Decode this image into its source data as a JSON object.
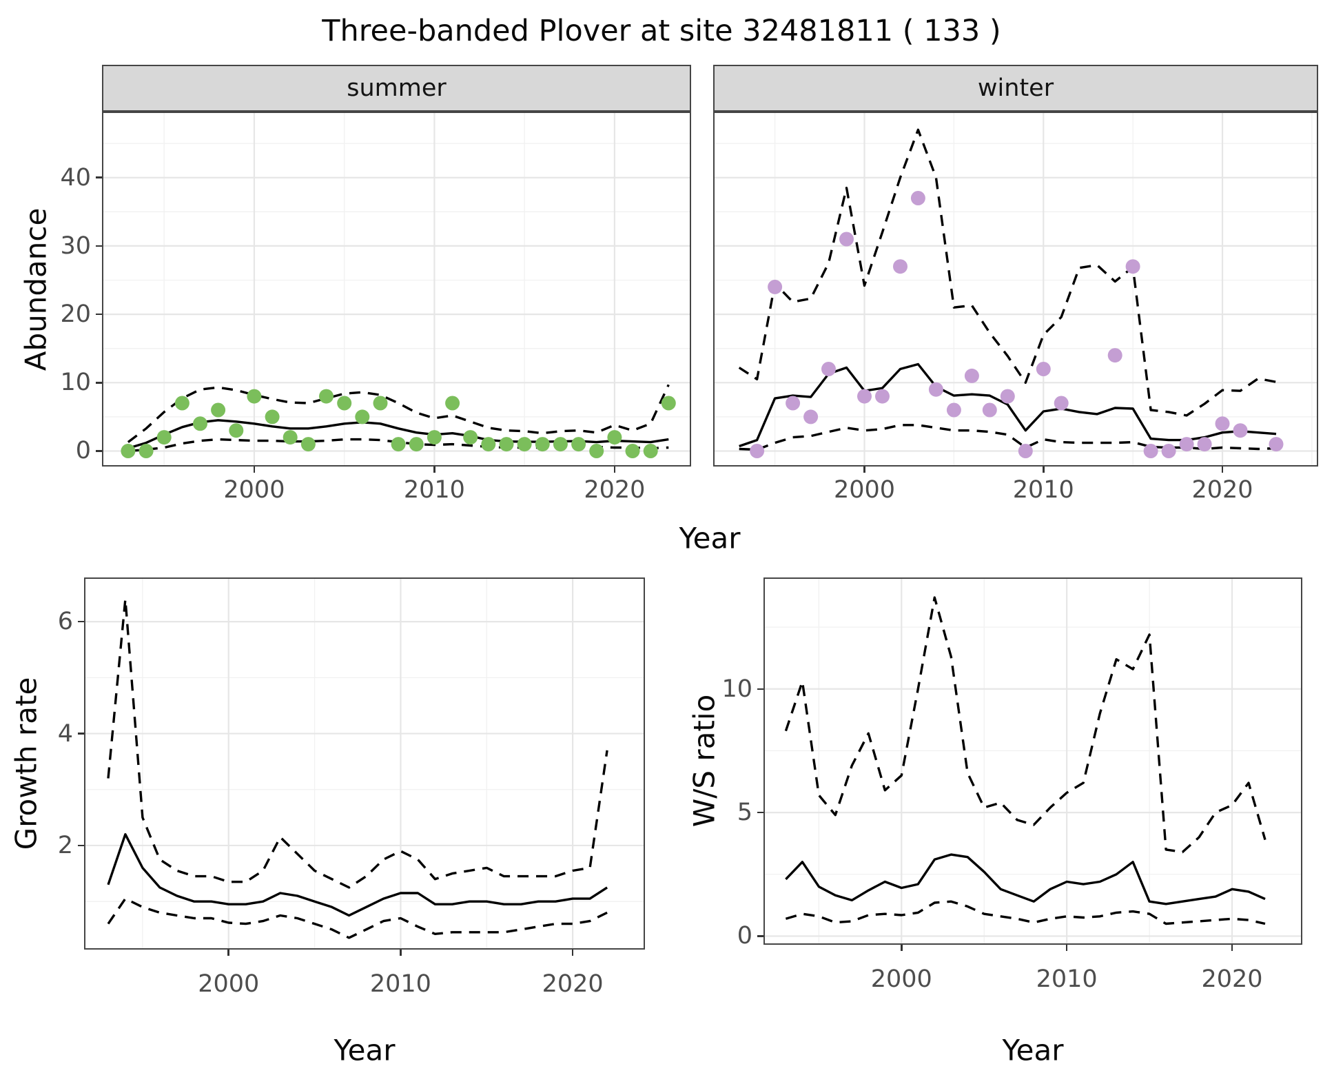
{
  "labels": {
    "title": "Three-banded Plover at site 32481811 ( 133 )",
    "facet_summer": "summer",
    "facet_winter": "winter",
    "y_axis_top": "Abundance",
    "y_axis_growth": "Growth rate",
    "y_axis_ws": "W/S ratio",
    "x_axis": "Year"
  },
  "colors": {
    "summer_points": "#7bbe5b",
    "winter_points": "#c49ed3",
    "line": "#000000",
    "strip_background": "#d8d8d8",
    "panel_border": "#454545",
    "grid_major": "#e6e6e6",
    "grid_minor": "#f1f1f1",
    "tick_text": "#4d4d4d"
  },
  "chart_data": [
    {
      "id": "summer-abundance",
      "type": "scatter",
      "facet": "summer",
      "ylabel": "Abundance",
      "xlabel": "Year",
      "xlim": [
        1991.55,
        2024.25
      ],
      "ylim": [
        -2.27,
        49.65
      ],
      "x_ticks": {
        "major": [
          2000,
          2010,
          2020
        ],
        "labels": [
          "2000",
          "2010",
          "2020"
        ],
        "minor": [
          1995,
          2005,
          2015
        ]
      },
      "y_ticks": {
        "major": [
          0,
          10,
          20,
          30,
          40
        ],
        "labels": [
          "0",
          "10",
          "20",
          "30",
          "40"
        ],
        "minor": [
          5,
          15,
          25,
          35,
          45
        ]
      },
      "show_y_axis": true,
      "x_label_offset": 14,
      "point_color": "#7bbe5b",
      "fit_start": 1993,
      "obs": [
        [
          1993,
          0
        ],
        [
          1994,
          0
        ],
        [
          1995,
          2
        ],
        [
          1996,
          7
        ],
        [
          1997,
          4
        ],
        [
          1998,
          6
        ],
        [
          1999,
          3
        ],
        [
          2000,
          8
        ],
        [
          2001,
          5
        ],
        [
          2002,
          2
        ],
        [
          2003,
          1
        ],
        [
          2004,
          8
        ],
        [
          2005,
          7
        ],
        [
          2006,
          5
        ],
        [
          2007,
          7
        ],
        [
          2008,
          1
        ],
        [
          2009,
          1
        ],
        [
          2010,
          2
        ],
        [
          2011,
          7
        ],
        [
          2012,
          2
        ],
        [
          2013,
          1
        ],
        [
          2014,
          1
        ],
        [
          2015,
          1
        ],
        [
          2016,
          1
        ],
        [
          2017,
          1
        ],
        [
          2018,
          1
        ],
        [
          2019,
          0
        ],
        [
          2020,
          2
        ],
        [
          2021,
          0
        ],
        [
          2022,
          0
        ],
        [
          2023,
          7
        ]
      ],
      "fit": [
        0.4,
        1.2,
        2.4,
        3.5,
        4.2,
        4.5,
        4.3,
        4.0,
        3.6,
        3.3,
        3.3,
        3.6,
        4.0,
        4.2,
        4.0,
        3.3,
        2.7,
        2.4,
        2.6,
        2.2,
        1.6,
        1.4,
        1.35,
        1.35,
        1.4,
        1.45,
        1.3,
        1.5,
        1.4,
        1.3,
        1.7
      ],
      "upper": [
        1.3,
        3.3,
        5.7,
        7.7,
        9.0,
        9.3,
        8.9,
        8.2,
        7.6,
        7.1,
        7.0,
        7.7,
        8.4,
        8.6,
        8.2,
        7.0,
        5.6,
        4.8,
        5.2,
        4.3,
        3.4,
        3.0,
        2.9,
        2.6,
        2.9,
        3.0,
        2.7,
        3.8,
        3.0,
        4.0,
        9.7
      ],
      "lower": [
        0.0,
        0.2,
        0.5,
        1.1,
        1.5,
        1.7,
        1.6,
        1.5,
        1.5,
        1.4,
        1.4,
        1.5,
        1.7,
        1.7,
        1.6,
        1.3,
        1.0,
        0.9,
        1.0,
        0.8,
        0.6,
        0.5,
        0.5,
        0.5,
        0.6,
        0.6,
        0.6,
        0.5,
        0.5,
        0.4,
        0.5
      ]
    },
    {
      "id": "winter-abundance",
      "type": "scatter",
      "facet": "winter",
      "ylabel": "Abundance",
      "xlabel": "Year",
      "xlim": [
        1991.55,
        2025.35
      ],
      "ylim": [
        -2.27,
        49.65
      ],
      "x_ticks": {
        "major": [
          2000,
          2010,
          2020
        ],
        "labels": [
          "2000",
          "2010",
          "2020"
        ],
        "minor": [
          1995,
          2005,
          2015,
          2025
        ]
      },
      "y_ticks": {
        "major": [
          0,
          10,
          20,
          30,
          40
        ],
        "labels": [
          "0",
          "10",
          "20",
          "30",
          "40"
        ],
        "minor": [
          5,
          15,
          25,
          35,
          45
        ]
      },
      "show_y_axis": false,
      "x_label_offset": 14,
      "point_color": "#c49ed3",
      "fit_start": 1993,
      "obs": [
        [
          1994,
          0
        ],
        [
          1995,
          24
        ],
        [
          1996,
          7
        ],
        [
          1997,
          5
        ],
        [
          1998,
          12
        ],
        [
          1999,
          31
        ],
        [
          2000,
          8
        ],
        [
          2001,
          8
        ],
        [
          2002,
          27
        ],
        [
          2003,
          37
        ],
        [
          2004,
          9
        ],
        [
          2005,
          6
        ],
        [
          2006,
          11
        ],
        [
          2007,
          6
        ],
        [
          2008,
          8
        ],
        [
          2009,
          0
        ],
        [
          2010,
          12
        ],
        [
          2011,
          7
        ],
        [
          2014,
          14
        ],
        [
          2015,
          27
        ],
        [
          2016,
          0
        ],
        [
          2017,
          0
        ],
        [
          2018,
          1
        ],
        [
          2019,
          1
        ],
        [
          2020,
          4
        ],
        [
          2021,
          3
        ],
        [
          2023,
          1
        ]
      ],
      "fit": [
        0.7,
        1.6,
        7.7,
        8.1,
        7.9,
        11.3,
        12.2,
        8.8,
        9.2,
        12.0,
        12.7,
        9.4,
        8.1,
        8.3,
        8.1,
        6.8,
        3.0,
        5.8,
        6.2,
        5.7,
        5.4,
        6.3,
        6.2,
        1.8,
        1.6,
        1.6,
        2.0,
        2.7,
        2.9,
        2.7,
        2.5
      ],
      "upper": [
        12.2,
        10.5,
        24.5,
        21.8,
        22.3,
        27.5,
        38.5,
        24.2,
        32.0,
        40.0,
        47.0,
        40.0,
        21.0,
        21.3,
        17.3,
        13.9,
        10.0,
        17.0,
        19.6,
        26.8,
        27.2,
        24.8,
        26.9,
        6.0,
        5.7,
        5.2,
        6.9,
        8.9,
        8.8,
        10.6,
        10.1
      ],
      "lower": [
        0.3,
        0.2,
        1.2,
        2.0,
        2.2,
        2.8,
        3.4,
        3.0,
        3.2,
        3.8,
        3.8,
        3.4,
        3.0,
        3.0,
        2.8,
        2.4,
        0.5,
        1.7,
        1.3,
        1.2,
        1.2,
        1.2,
        1.3,
        0.6,
        0.5,
        0.5,
        0.3,
        0.5,
        0.4,
        0.3,
        0.4
      ]
    },
    {
      "id": "growth-rate",
      "type": "line",
      "ylabel": "Growth rate",
      "xlabel": "Year",
      "xlim": [
        1991.6,
        2024.2
      ],
      "ylim": [
        0.14,
        6.79
      ],
      "x_ticks": {
        "major": [
          2000,
          2010,
          2020
        ],
        "labels": [
          "2000",
          "2010",
          "2020"
        ],
        "minor": [
          1995,
          2005,
          2015
        ]
      },
      "y_ticks": {
        "major": [
          2,
          4,
          6
        ],
        "labels": [
          "2",
          "4",
          "6"
        ],
        "minor": [
          1,
          3,
          5
        ]
      },
      "show_y_axis": true,
      "x_label_offset": 30,
      "point_color": null,
      "fit_start": 1993,
      "obs": null,
      "fit": [
        1.3,
        2.2,
        1.6,
        1.25,
        1.1,
        1.0,
        1.0,
        0.95,
        0.95,
        1.0,
        1.15,
        1.1,
        1.0,
        0.9,
        0.75,
        0.9,
        1.05,
        1.15,
        1.15,
        0.95,
        0.95,
        1.0,
        1.0,
        0.95,
        0.95,
        1.0,
        1.0,
        1.05,
        1.05,
        1.25
      ],
      "upper": [
        3.2,
        6.4,
        2.5,
        1.75,
        1.55,
        1.45,
        1.45,
        1.35,
        1.35,
        1.55,
        2.15,
        1.85,
        1.55,
        1.4,
        1.25,
        1.45,
        1.75,
        1.9,
        1.75,
        1.4,
        1.5,
        1.55,
        1.6,
        1.45,
        1.45,
        1.45,
        1.45,
        1.55,
        1.6,
        3.7
      ],
      "lower": [
        0.6,
        1.05,
        0.9,
        0.8,
        0.75,
        0.7,
        0.7,
        0.62,
        0.6,
        0.65,
        0.75,
        0.7,
        0.6,
        0.5,
        0.35,
        0.5,
        0.65,
        0.7,
        0.55,
        0.42,
        0.45,
        0.45,
        0.45,
        0.45,
        0.5,
        0.55,
        0.6,
        0.6,
        0.65,
        0.8
      ]
    },
    {
      "id": "ws-ratio",
      "type": "line",
      "ylabel": "W/S ratio",
      "xlabel": "Year",
      "xlim": [
        1991.65,
        2024.25
      ],
      "ylim": [
        -0.35,
        14.51
      ],
      "x_ticks": {
        "major": [
          2000,
          2010,
          2020
        ],
        "labels": [
          "2000",
          "2010",
          "2020"
        ],
        "minor": [
          1995,
          2005,
          2015
        ]
      },
      "y_ticks": {
        "major": [
          0,
          5,
          10
        ],
        "labels": [
          "0",
          "5",
          "10"
        ],
        "minor": [
          2.5,
          7.5,
          12.5
        ]
      },
      "show_y_axis": true,
      "x_label_offset": 30,
      "point_color": null,
      "fit_start": 1993,
      "obs": null,
      "fit": [
        2.3,
        3.0,
        2.0,
        1.65,
        1.45,
        1.85,
        2.2,
        1.95,
        2.1,
        3.1,
        3.3,
        3.2,
        2.6,
        1.9,
        1.65,
        1.4,
        1.9,
        2.2,
        2.1,
        2.2,
        2.5,
        3.0,
        1.4,
        1.3,
        1.4,
        1.5,
        1.6,
        1.9,
        1.8,
        1.5
      ],
      "upper": [
        8.3,
        10.3,
        5.7,
        4.9,
        6.9,
        8.2,
        5.9,
        6.5,
        10.0,
        13.7,
        11.3,
        6.6,
        5.2,
        5.4,
        4.7,
        4.5,
        5.2,
        5.8,
        6.2,
        9.0,
        11.2,
        10.8,
        12.2,
        3.5,
        3.4,
        4.0,
        5.0,
        5.3,
        6.2,
        3.9
      ],
      "lower": [
        0.7,
        0.9,
        0.8,
        0.55,
        0.6,
        0.85,
        0.9,
        0.85,
        0.95,
        1.35,
        1.4,
        1.2,
        0.9,
        0.8,
        0.7,
        0.55,
        0.7,
        0.8,
        0.75,
        0.8,
        0.95,
        1.0,
        0.9,
        0.5,
        0.55,
        0.6,
        0.65,
        0.7,
        0.65,
        0.5
      ]
    }
  ]
}
